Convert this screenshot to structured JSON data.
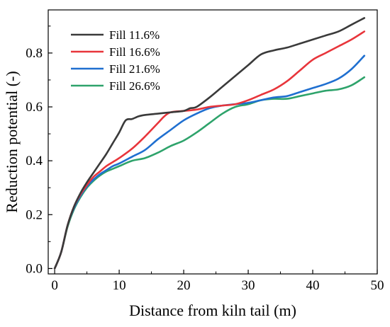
{
  "chart_data": {
    "type": "line",
    "xlabel": "Distance from kiln tail (m)",
    "ylabel": "Reduction potential (-)",
    "xlim": [
      -1,
      50
    ],
    "ylim": [
      -0.02,
      0.96
    ],
    "xticks": [
      0,
      10,
      20,
      30,
      40,
      50
    ],
    "yticks": [
      0.0,
      0.2,
      0.4,
      0.6,
      0.8
    ],
    "xtick_labels": [
      "0",
      "10",
      "20",
      "30",
      "40",
      "50"
    ],
    "ytick_labels": [
      "0.0",
      "0.2",
      "0.4",
      "0.6",
      "0.8"
    ],
    "legend_position": "top-left",
    "grid": false,
    "series": [
      {
        "name": "Fill 11.6%",
        "color": "#3a3a3a",
        "x": [
          0,
          1,
          2,
          3,
          4,
          5,
          6,
          7,
          8,
          9,
          10,
          11,
          12,
          13,
          14,
          16,
          18,
          20,
          21,
          22,
          24,
          26,
          28,
          30,
          32,
          34,
          36,
          38,
          40,
          42,
          44,
          46,
          48
        ],
        "y": [
          0.0,
          0.06,
          0.16,
          0.23,
          0.28,
          0.32,
          0.355,
          0.39,
          0.425,
          0.465,
          0.505,
          0.55,
          0.555,
          0.565,
          0.57,
          0.575,
          0.58,
          0.585,
          0.595,
          0.6,
          0.635,
          0.675,
          0.715,
          0.755,
          0.795,
          0.81,
          0.82,
          0.835,
          0.85,
          0.865,
          0.88,
          0.905,
          0.93
        ]
      },
      {
        "name": "Fill 16.6%",
        "color": "#e8353b",
        "x": [
          0,
          1,
          2,
          3,
          4,
          5,
          6,
          7,
          8,
          9,
          10,
          12,
          14,
          16,
          17,
          18,
          20,
          22,
          24,
          26,
          28,
          30,
          32,
          34,
          36,
          38,
          40,
          42,
          44,
          46,
          48
        ],
        "y": [
          0.0,
          0.06,
          0.16,
          0.23,
          0.275,
          0.31,
          0.34,
          0.36,
          0.38,
          0.395,
          0.41,
          0.445,
          0.49,
          0.54,
          0.565,
          0.58,
          0.585,
          0.59,
          0.6,
          0.605,
          0.61,
          0.625,
          0.645,
          0.665,
          0.695,
          0.735,
          0.775,
          0.8,
          0.825,
          0.85,
          0.88
        ]
      },
      {
        "name": "Fill 21.6%",
        "color": "#1f6fd0",
        "x": [
          0,
          1,
          2,
          3,
          4,
          5,
          6,
          7,
          8,
          9,
          10,
          12,
          14,
          16,
          18,
          20,
          22,
          24,
          26,
          28,
          30,
          32,
          34,
          36,
          38,
          40,
          42,
          44,
          46,
          48
        ],
        "y": [
          0.0,
          0.06,
          0.16,
          0.225,
          0.27,
          0.305,
          0.33,
          0.35,
          0.365,
          0.38,
          0.39,
          0.415,
          0.44,
          0.48,
          0.515,
          0.55,
          0.575,
          0.595,
          0.605,
          0.61,
          0.615,
          0.625,
          0.635,
          0.64,
          0.655,
          0.67,
          0.685,
          0.705,
          0.74,
          0.79
        ]
      },
      {
        "name": "Fill 26.6%",
        "color": "#2ea36b",
        "x": [
          0,
          1,
          2,
          3,
          4,
          5,
          6,
          7,
          8,
          9,
          10,
          12,
          14,
          16,
          18,
          20,
          22,
          24,
          26,
          28,
          30,
          32,
          34,
          36,
          38,
          40,
          42,
          44,
          46,
          48
        ],
        "y": [
          0.0,
          0.06,
          0.155,
          0.22,
          0.265,
          0.3,
          0.325,
          0.345,
          0.36,
          0.37,
          0.38,
          0.4,
          0.41,
          0.43,
          0.455,
          0.475,
          0.505,
          0.54,
          0.575,
          0.6,
          0.61,
          0.625,
          0.63,
          0.63,
          0.64,
          0.65,
          0.66,
          0.665,
          0.68,
          0.71
        ]
      }
    ]
  }
}
